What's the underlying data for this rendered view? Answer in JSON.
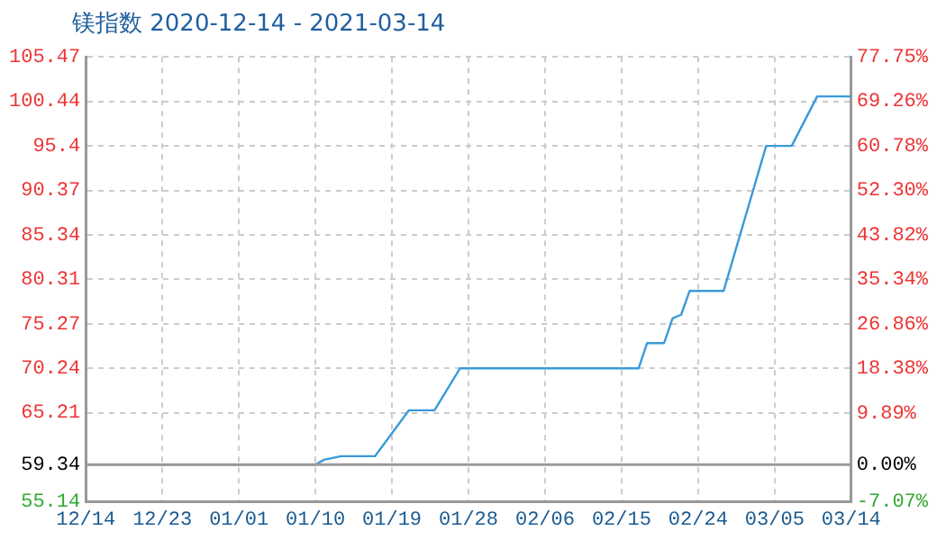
{
  "chart_data": {
    "type": "line",
    "title": "镁指数 2020-12-14 - 2021-03-14",
    "x": [
      "2020-12-14",
      "2021-01-10",
      "2021-01-11",
      "2021-01-13",
      "2021-01-17",
      "2021-01-21",
      "2021-01-24",
      "2021-01-27",
      "2021-02-17",
      "2021-02-18",
      "2021-02-20",
      "2021-02-21",
      "2021-02-22",
      "2021-02-23",
      "2021-02-27",
      "2021-03-04",
      "2021-03-07",
      "2021-03-10",
      "2021-03-14"
    ],
    "series": [
      {
        "color": "#3a9ad9",
        "values": [
          59.34,
          59.34,
          59.9,
          60.3,
          60.3,
          65.5,
          65.5,
          70.24,
          70.24,
          73.1,
          73.1,
          75.9,
          76.3,
          79,
          79,
          95.4,
          95.4,
          101,
          101
        ]
      }
    ],
    "xlim": [
      "2020-12-14",
      "2021-03-14"
    ],
    "xticks": [
      {
        "value": "2020-12-14",
        "label": "12/14"
      },
      {
        "value": "2020-12-23",
        "label": "12/23"
      },
      {
        "value": "2021-01-01",
        "label": "01/01"
      },
      {
        "value": "2021-01-10",
        "label": "01/10"
      },
      {
        "value": "2021-01-19",
        "label": "01/19"
      },
      {
        "value": "2021-01-28",
        "label": "01/28"
      },
      {
        "value": "2021-02-06",
        "label": "02/06"
      },
      {
        "value": "2021-02-15",
        "label": "02/15"
      },
      {
        "value": "2021-02-24",
        "label": "02/24"
      },
      {
        "value": "2021-03-05",
        "label": "03/05"
      },
      {
        "value": "2021-03-14",
        "label": "03/14"
      }
    ],
    "ylim": [
      55.14,
      105.47
    ],
    "yticks": [
      55.14,
      59.34,
      65.21,
      70.24,
      75.27,
      80.31,
      85.34,
      90.37,
      95.4,
      100.44,
      105.47
    ],
    "y2lim": [
      -7.07,
      77.75
    ],
    "y2ticks": [
      {
        "value": -7.07,
        "label": "-7.07%"
      },
      {
        "value": 0,
        "label": "0.00%"
      },
      {
        "value": 9.89,
        "label": "9.89%"
      },
      {
        "value": 18.38,
        "label": "18.38%"
      },
      {
        "value": 26.86,
        "label": "26.86%"
      },
      {
        "value": 35.34,
        "label": "35.34%"
      },
      {
        "value": 43.82,
        "label": "43.82%"
      },
      {
        "value": 52.3,
        "label": "52.30%"
      },
      {
        "value": 60.78,
        "label": "60.78%"
      },
      {
        "value": 69.26,
        "label": "69.26%"
      },
      {
        "value": 77.75,
        "label": "77.75%"
      }
    ],
    "ref_lines": [
      {
        "axis": "y",
        "value": 59.34,
        "color": "#999999"
      }
    ],
    "grid": true,
    "marker": "none",
    "line_style": "solid"
  }
}
